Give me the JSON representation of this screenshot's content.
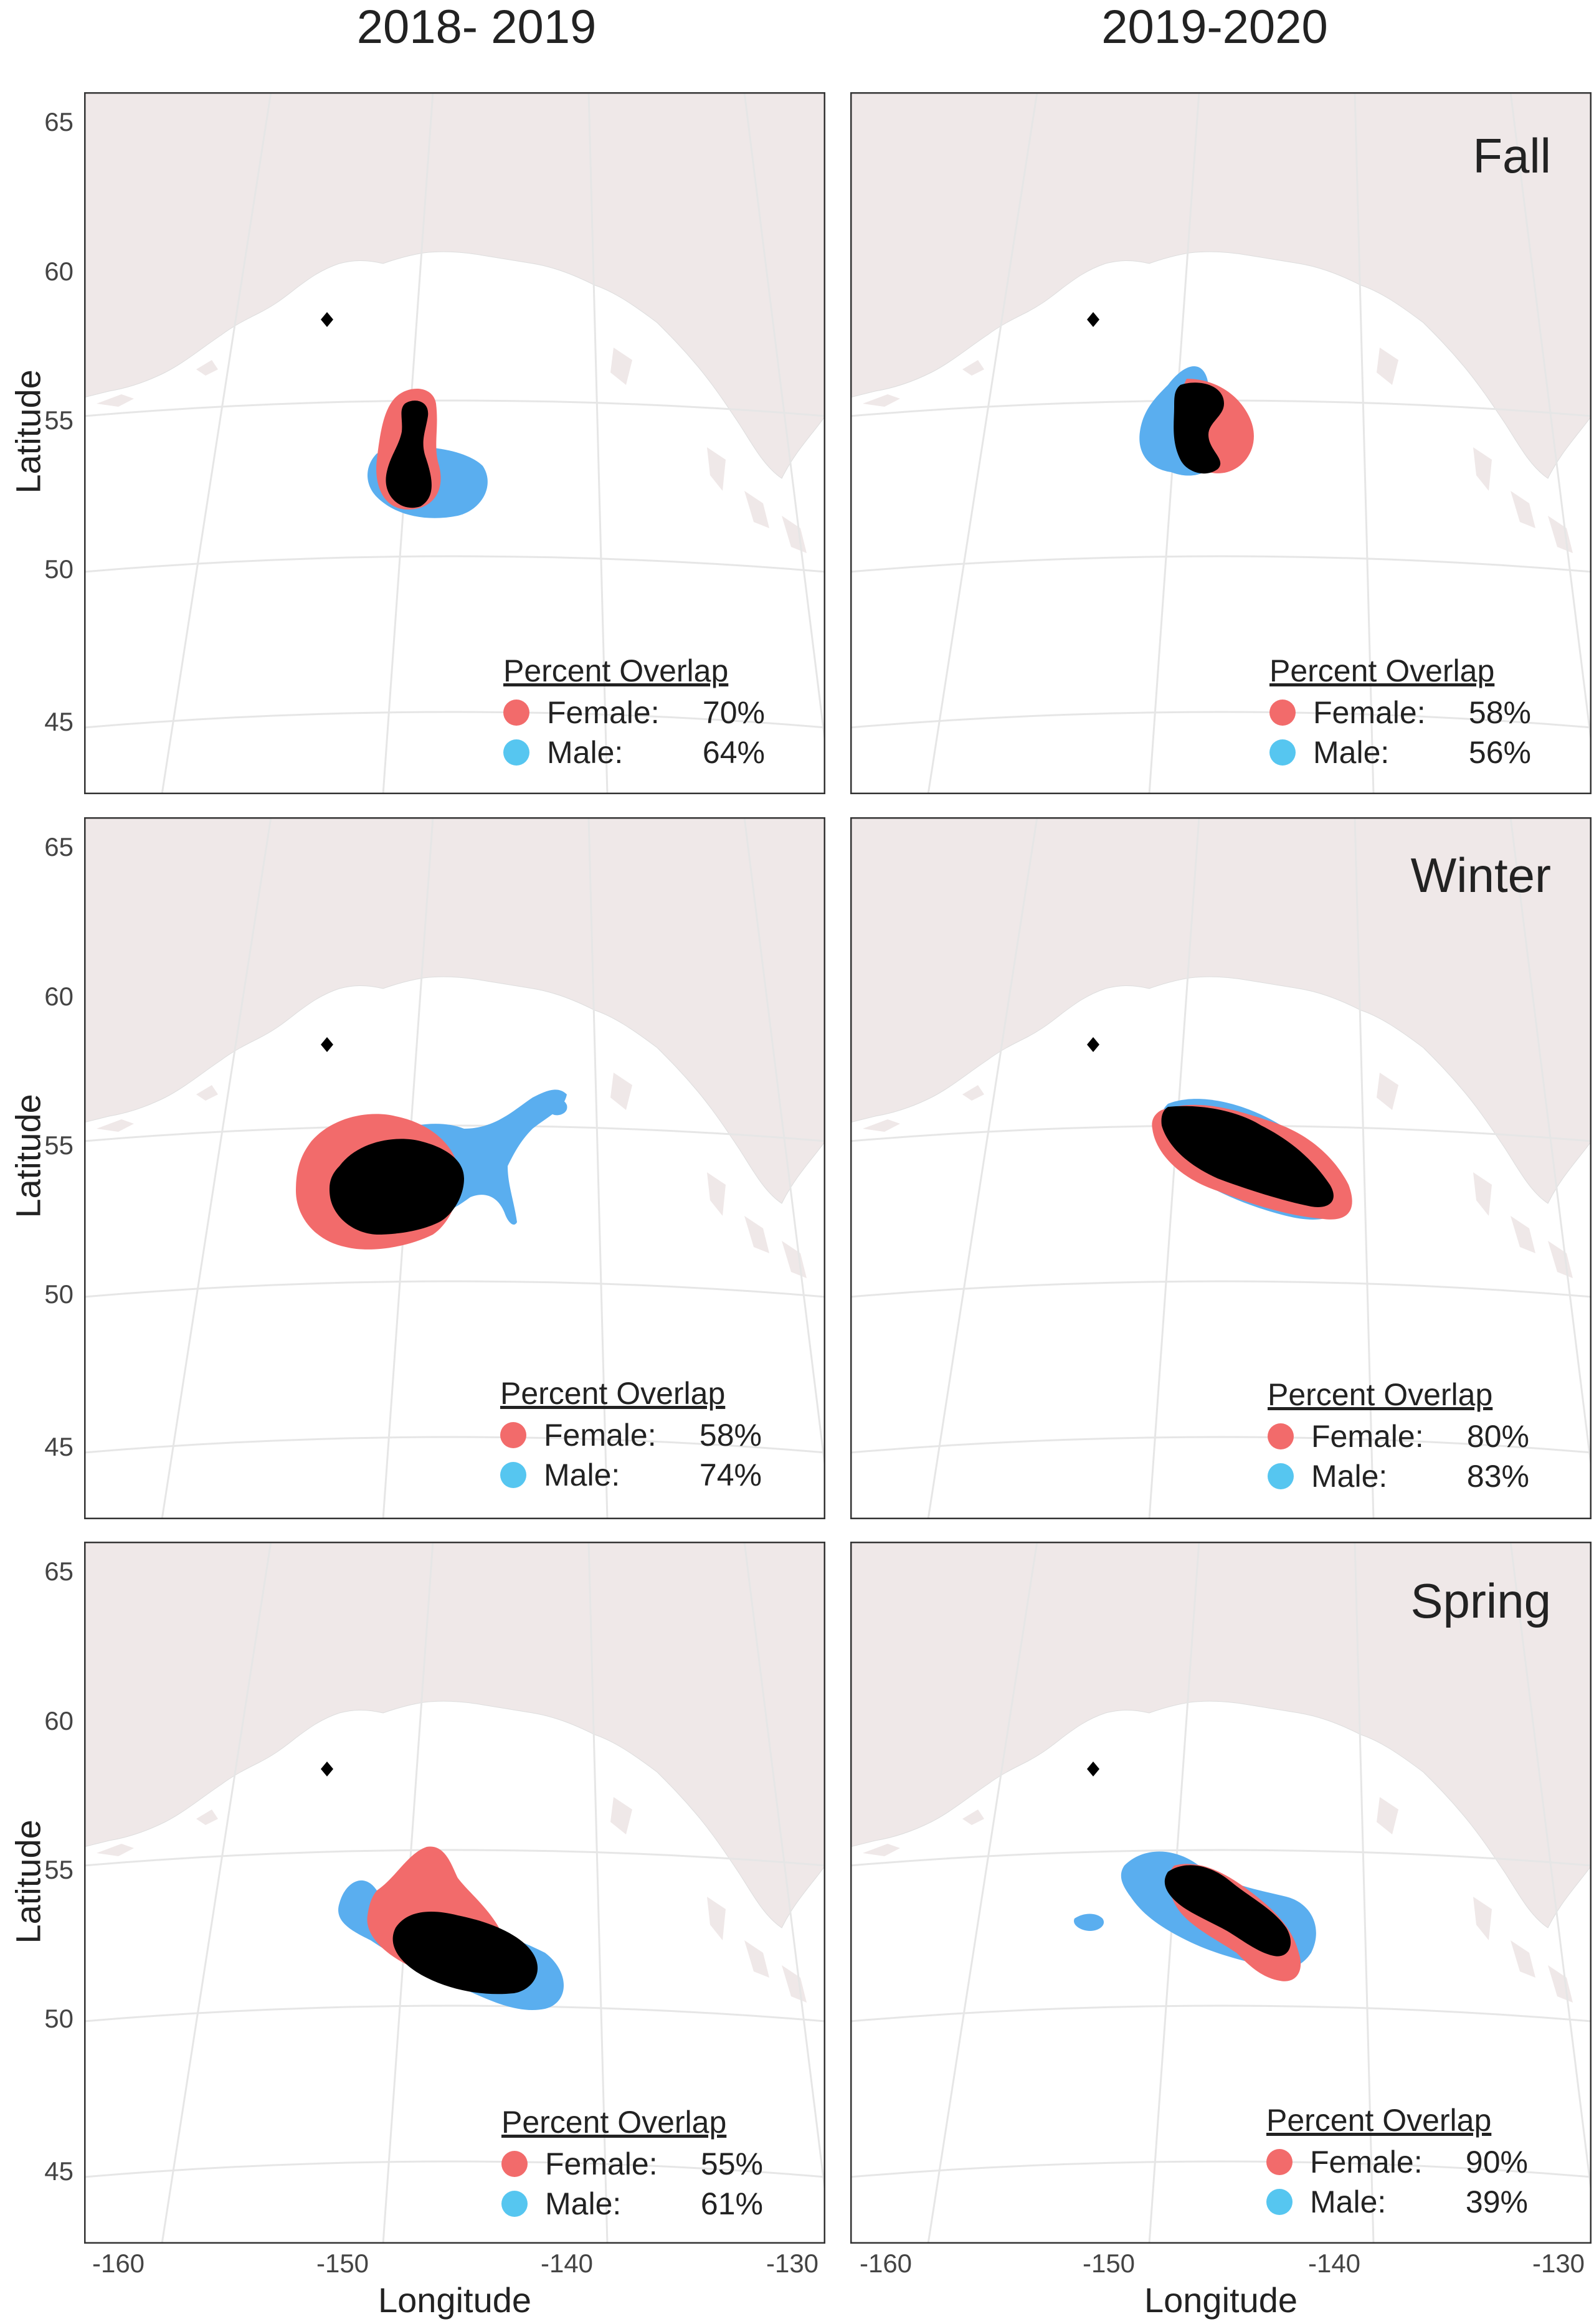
{
  "columns": [
    "2018- 2019",
    "2019-2020"
  ],
  "seasons": [
    "Fall",
    "Winter",
    "Spring"
  ],
  "axes": {
    "xlabel": "Longitude",
    "ylabel": "Latitude",
    "xticks": [
      "-160",
      "-150",
      "-140",
      "-130"
    ],
    "yticks": [
      "65",
      "60",
      "55",
      "50",
      "45"
    ]
  },
  "legend": {
    "title": "Percent Overlap",
    "female_label": "Female:",
    "male_label": "Male:"
  },
  "colors": {
    "female": "#F26B6B",
    "male": "#5AAEEF",
    "overlap": "#000000",
    "land": "#EFE8E8",
    "legend_male_dot": "#56C6F0"
  },
  "panels": [
    {
      "column": "2018- 2019",
      "season": "Fall",
      "female": "70%",
      "male": "64%"
    },
    {
      "column": "2019-2020",
      "season": "Fall",
      "female": "58%",
      "male": "56%"
    },
    {
      "column": "2018- 2019",
      "season": "Winter",
      "female": "58%",
      "male": "74%"
    },
    {
      "column": "2019-2020",
      "season": "Winter",
      "female": "80%",
      "male": "83%"
    },
    {
      "column": "2018- 2019",
      "season": "Spring",
      "female": "55%",
      "male": "61%"
    },
    {
      "column": "2019-2020",
      "season": "Spring",
      "female": "90%",
      "male": "39%"
    }
  ],
  "marker": {
    "shape": "diamond",
    "label": ""
  }
}
